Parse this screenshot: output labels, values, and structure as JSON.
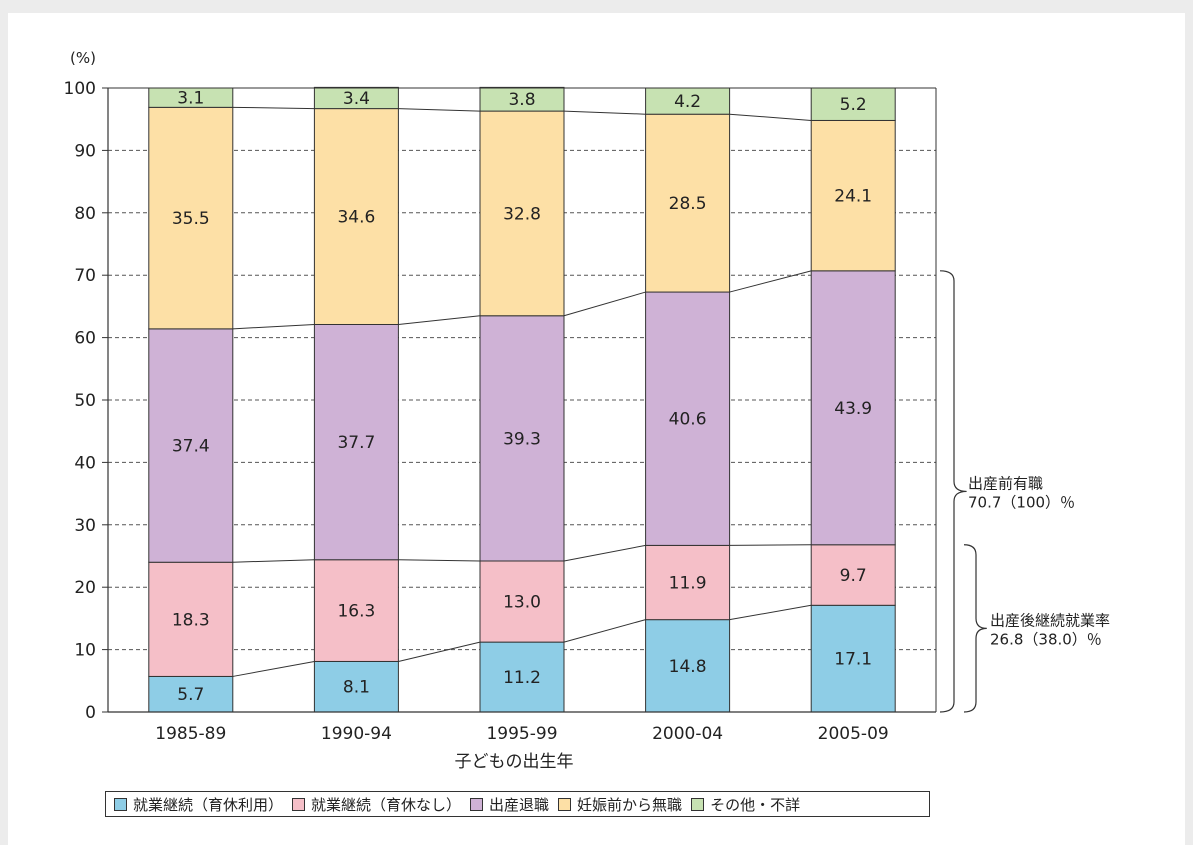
{
  "chart_data": {
    "type": "bar",
    "stacked": true,
    "ylabel": "(%)",
    "xlabel": "子どもの出生年",
    "ylim": [
      0,
      100
    ],
    "yticks": [
      0,
      10,
      20,
      30,
      40,
      50,
      60,
      70,
      80,
      90,
      100
    ],
    "categories": [
      "1985-89",
      "1990-94",
      "1995-99",
      "2000-04",
      "2005-09"
    ],
    "series": [
      {
        "name": "就業継続（育休利用）",
        "color": "#8ecde6",
        "values": [
          5.7,
          8.1,
          11.2,
          14.8,
          17.1
        ]
      },
      {
        "name": "就業継続（育休なし）",
        "color": "#f5bfc8",
        "values": [
          18.3,
          16.3,
          13.0,
          11.9,
          9.7
        ]
      },
      {
        "name": "出産退職",
        "color": "#cfb2d6",
        "values": [
          37.4,
          37.7,
          39.3,
          40.6,
          43.9
        ]
      },
      {
        "name": "妊娠前から無職",
        "color": "#fde0a6",
        "values": [
          35.5,
          34.6,
          32.8,
          28.5,
          24.1
        ]
      },
      {
        "name": "その他・不詳",
        "color": "#c7e2b2",
        "values": [
          3.1,
          3.4,
          3.8,
          4.2,
          5.2
        ]
      }
    ],
    "annotations": [
      {
        "text": [
          "出産前有職",
          "70.7（100）％"
        ],
        "span": [
          0,
          70.7
        ]
      },
      {
        "text": [
          "出産後継続就業率",
          "26.8（38.0）％"
        ],
        "span": [
          0,
          26.8
        ]
      }
    ],
    "grid": "dashed horizontal",
    "legend_position": "bottom"
  }
}
